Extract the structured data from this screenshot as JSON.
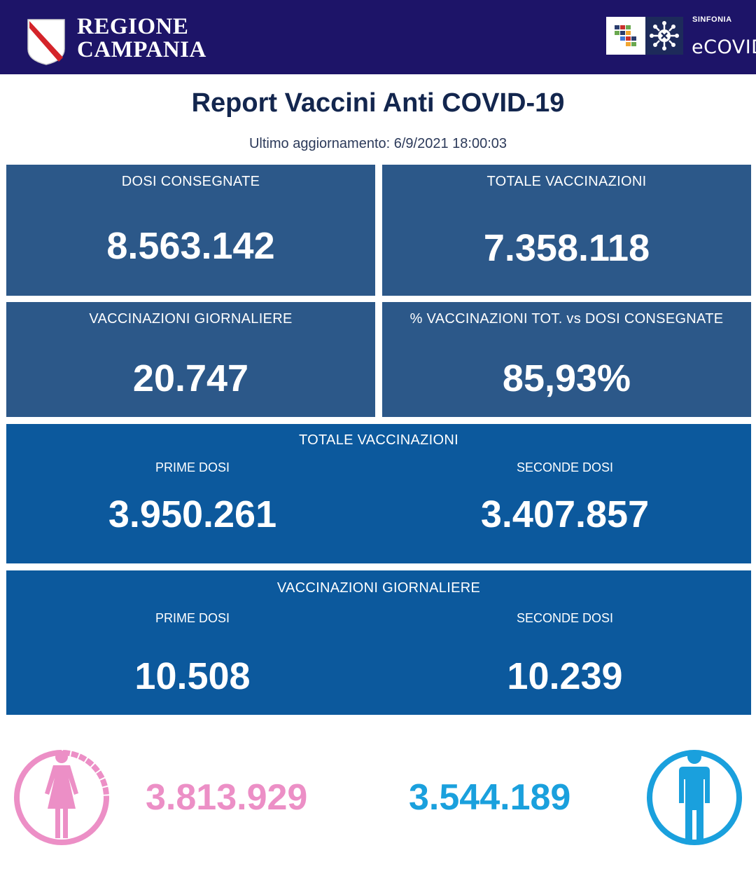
{
  "header": {
    "brand_line1": "REGIONE",
    "brand_line2": "CAMPANIA",
    "logo_top": "SINFONIA",
    "logo_name": "eCOVID",
    "bar_color": "#1d1468"
  },
  "title": "Report Vaccini Anti COVID-19",
  "updated": "Ultimo aggiornamento: 6/9/2021  18:00:03",
  "cards": {
    "dosi_consegnate": {
      "label": "DOSI  CONSEGNATE",
      "value": "8.563.142"
    },
    "totale_vaccinazioni": {
      "label": "TOTALE VACCINAZIONI",
      "value": "7.358.118"
    },
    "vaccinazioni_giornaliere": {
      "label": "VACCINAZIONI GIORNALIERE",
      "value": "20.747"
    },
    "percentuale": {
      "label": "% VACCINAZIONI TOT. vs DOSI CONSEGNATE",
      "value": "85,93%"
    }
  },
  "totale_breakdown": {
    "heading": "TOTALE VACCINAZIONI",
    "first_label": "PRIME DOSI",
    "first_value": "3.950.261",
    "second_label": "SECONDE DOSI",
    "second_value": "3.407.857"
  },
  "giornaliere_breakdown": {
    "heading": "VACCINAZIONI GIORNALIERE",
    "first_label": "PRIME DOSI",
    "first_value": "10.508",
    "second_label": "SECONDE DOSI",
    "second_value": "10.239"
  },
  "gender": {
    "female_icon": "female-person-icon",
    "female_value": "3.813.929",
    "female_color": "#ec8fc6",
    "male_icon": "male-person-icon",
    "male_value": "3.544.189",
    "male_color": "#1aa0dd"
  },
  "colors": {
    "card": "#2c5889",
    "breakdown": "#0c599d",
    "title": "#13264e"
  }
}
